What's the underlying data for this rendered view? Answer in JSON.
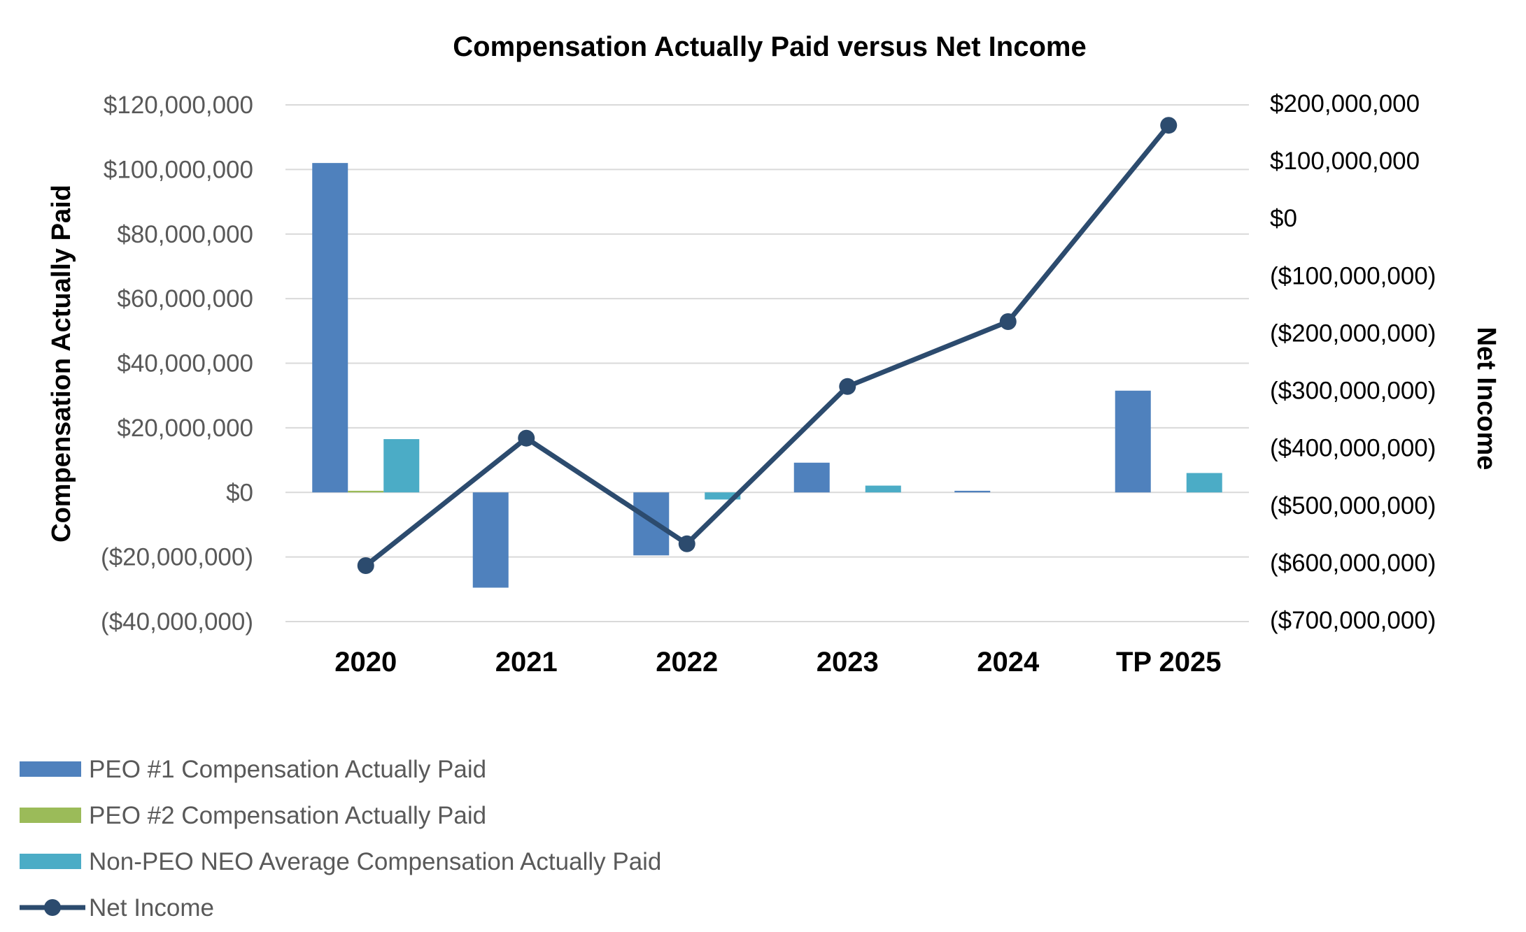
{
  "chart_data": {
    "type": "bar",
    "title": "Compensation Actually Paid versus Net Income",
    "categories": [
      "2020",
      "2021",
      "2022",
      "2023",
      "2024",
      "TP 2025"
    ],
    "ylabel": "Compensation Actually Paid",
    "y2label": "Net Income",
    "ylim": [
      -40000000,
      120000000
    ],
    "y2lim": [
      -700000000,
      200000000
    ],
    "yticks": [
      {
        "value": 120000000,
        "label": "$120,000,000"
      },
      {
        "value": 100000000,
        "label": "$100,000,000"
      },
      {
        "value": 80000000,
        "label": "$80,000,000"
      },
      {
        "value": 60000000,
        "label": "$60,000,000"
      },
      {
        "value": 40000000,
        "label": "$40,000,000"
      },
      {
        "value": 20000000,
        "label": "$20,000,000"
      },
      {
        "value": 0,
        "label": "$0"
      },
      {
        "value": -20000000,
        "label": "($20,000,000)"
      },
      {
        "value": -40000000,
        "label": "($40,000,000)"
      }
    ],
    "y2ticks": [
      {
        "value": 200000000,
        "label": "$200,000,000"
      },
      {
        "value": 100000000,
        "label": "$100,000,000"
      },
      {
        "value": 0,
        "label": "$0"
      },
      {
        "value": -100000000,
        "label": "($100,000,000)"
      },
      {
        "value": -200000000,
        "label": "($200,000,000)"
      },
      {
        "value": -300000000,
        "label": "($300,000,000)"
      },
      {
        "value": -400000000,
        "label": "($400,000,000)"
      },
      {
        "value": -500000000,
        "label": "($500,000,000)"
      },
      {
        "value": -600000000,
        "label": "($600,000,000)"
      },
      {
        "value": -700000000,
        "label": "($700,000,000)"
      }
    ],
    "grid": true,
    "legend_position": "bottom-left",
    "series": [
      {
        "name": "PEO #1 Compensation Actually Paid",
        "type": "bar",
        "axis": "left",
        "color": "#4F81BD",
        "values": [
          102000000,
          -29500000,
          -19500000,
          9200000,
          500000,
          31500000
        ]
      },
      {
        "name": "PEO #2 Compensation Actually Paid",
        "type": "bar",
        "axis": "left",
        "color": "#9BBB59",
        "values": [
          500000,
          0,
          0,
          0,
          0,
          0
        ]
      },
      {
        "name": "Non-PEO NEO Average Compensation Actually Paid",
        "type": "bar",
        "axis": "left",
        "color": "#4BACC6",
        "values": [
          16500000,
          0,
          -2200000,
          2100000,
          0,
          6000000
        ]
      },
      {
        "name": "Net Income",
        "type": "line",
        "axis": "right",
        "color": "#2C4B6E",
        "values": [
          -605000000,
          -383000000,
          -567000000,
          -293000000,
          -180000000,
          162000000
        ]
      }
    ]
  }
}
